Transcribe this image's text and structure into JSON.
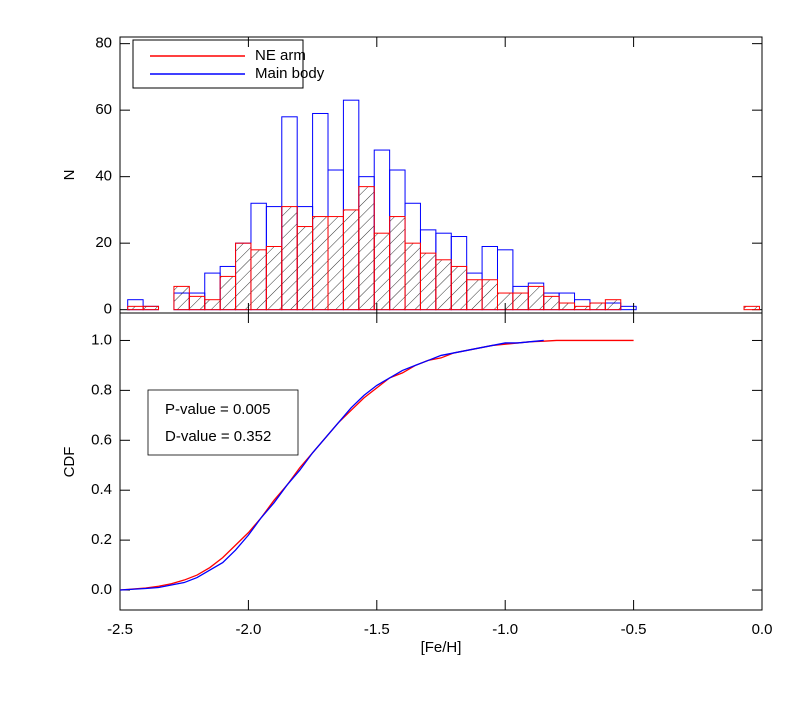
{
  "chart_data": [
    {
      "type": "histogram",
      "ylabel": "N",
      "xlim": [
        -2.5,
        0.0
      ],
      "ylim": [
        -1,
        82
      ],
      "yticks": [
        0,
        20,
        40,
        60,
        80
      ],
      "legend": "upper left",
      "bins": [
        -2.47,
        -2.41,
        -2.35,
        -2.29,
        -2.23,
        -2.17,
        -2.11,
        -2.05,
        -1.99,
        -1.93,
        -1.87,
        -1.81,
        -1.75,
        -1.69,
        -1.63,
        -1.57,
        -1.51,
        -1.45,
        -1.39,
        -1.33,
        -1.27,
        -1.21,
        -1.15,
        -1.09,
        -1.03,
        -0.97,
        -0.91,
        -0.85,
        -0.79,
        -0.73,
        -0.67,
        -0.61,
        -0.55,
        -0.49,
        -0.43,
        -0.37,
        -0.31,
        -0.25,
        -0.19,
        -0.13,
        -0.07,
        -0.01
      ],
      "series": [
        {
          "name": "NE arm",
          "color": "#ff0000",
          "values": [
            1,
            1,
            0,
            7,
            4,
            3,
            10,
            20,
            18,
            19,
            31,
            25,
            28,
            28,
            30,
            37,
            23,
            28,
            20,
            17,
            15,
            13,
            9,
            9,
            5,
            5,
            7,
            4,
            2,
            1,
            2,
            3,
            0,
            0,
            0,
            0,
            0,
            0,
            0,
            0,
            1
          ]
        },
        {
          "name": "Main body",
          "color": "#0000ff",
          "values": [
            3,
            1,
            0,
            5,
            5,
            11,
            13,
            20,
            32,
            31,
            58,
            31,
            59,
            42,
            63,
            40,
            48,
            42,
            32,
            24,
            23,
            22,
            11,
            19,
            18,
            7,
            8,
            5,
            5,
            3,
            2,
            2,
            1,
            0,
            0,
            0,
            0,
            0,
            0,
            0,
            0
          ]
        }
      ]
    },
    {
      "type": "line",
      "xlabel": "[Fe/H]",
      "ylabel": "CDF",
      "xlim": [
        -2.5,
        0.0
      ],
      "ylim": [
        -0.08,
        1.11
      ],
      "xticks": [
        {
          "value": -2.5,
          "label": "-2.5"
        },
        {
          "value": -2,
          "label": "-2.0"
        },
        -1.5,
        {
          "value": -1,
          "label": "-1.0"
        },
        -0.5,
        {
          "value": 0,
          "label": "0.0"
        }
      ],
      "yticks": [
        {
          "value": 0,
          "label": "0.0"
        },
        0.2,
        0.4,
        0.6,
        0.8,
        {
          "value": 1,
          "label": "1.0"
        }
      ],
      "annotations": [
        "P-value = 0.005",
        "D-value = 0.352"
      ],
      "x": [
        -2.5,
        -2.45,
        -2.4,
        -2.35,
        -2.3,
        -2.25,
        -2.2,
        -2.15,
        -2.1,
        -2.05,
        -2.0,
        -1.95,
        -1.9,
        -1.85,
        -1.8,
        -1.75,
        -1.7,
        -1.65,
        -1.6,
        -1.55,
        -1.5,
        -1.45,
        -1.4,
        -1.35,
        -1.3,
        -1.25,
        -1.2,
        -1.15,
        -1.1,
        -1.05,
        -1.0,
        -0.95,
        -0.9,
        -0.85,
        -0.8,
        -0.75,
        -0.7,
        -0.65,
        -0.6,
        -0.55,
        -0.5
      ],
      "series": [
        {
          "color": "#ff0000",
          "values": [
            0,
            0.004,
            0.008,
            0.015,
            0.025,
            0.04,
            0.06,
            0.09,
            0.13,
            0.18,
            0.23,
            0.29,
            0.36,
            0.42,
            0.49,
            0.55,
            0.61,
            0.67,
            0.72,
            0.77,
            0.81,
            0.85,
            0.87,
            0.9,
            0.92,
            0.93,
            0.95,
            0.96,
            0.97,
            0.98,
            0.985,
            0.99,
            0.995,
            0.997,
            1.0,
            1.0,
            1.0,
            1.0,
            1.0,
            1.0,
            1.0
          ]
        },
        {
          "color": "#0000ff",
          "values": [
            0,
            0.003,
            0.006,
            0.01,
            0.02,
            0.03,
            0.05,
            0.08,
            0.11,
            0.16,
            0.22,
            0.29,
            0.35,
            0.42,
            0.48,
            0.55,
            0.61,
            0.67,
            0.73,
            0.78,
            0.82,
            0.85,
            0.88,
            0.9,
            0.92,
            0.94,
            0.95,
            0.96,
            0.97,
            0.98,
            0.99,
            0.99,
            0.995,
            1.0,
            null,
            null,
            null,
            null,
            null,
            null,
            null
          ]
        }
      ]
    }
  ]
}
